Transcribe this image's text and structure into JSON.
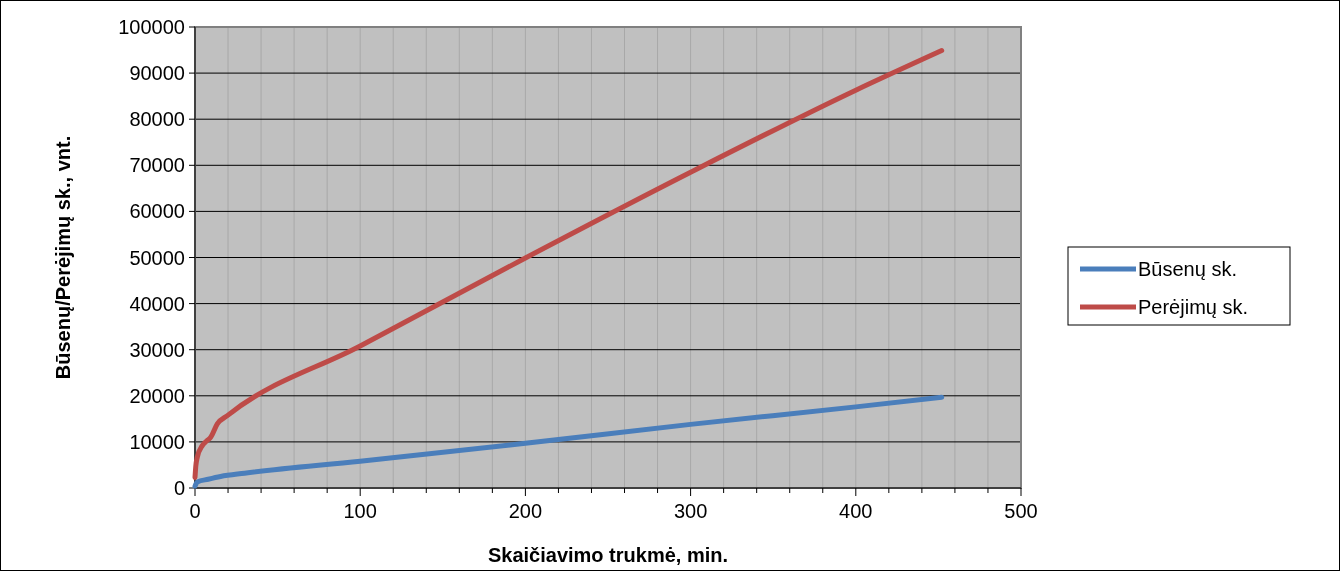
{
  "chart_data": {
    "type": "line",
    "xlabel": "Skaičiavimo trukmė, min.",
    "ylabel": "Būsenų/Perėjimų sk., vnt.",
    "xlim": [
      0,
      500
    ],
    "xticks": [
      0,
      {
        "value": 20,
        "label": null
      },
      {
        "value": 40,
        "label": null
      },
      {
        "value": 60,
        "label": null
      },
      {
        "value": 80,
        "label": null
      },
      100,
      {
        "value": 120,
        "label": null
      },
      {
        "value": 140,
        "label": null
      },
      {
        "value": 160,
        "label": null
      },
      {
        "value": 180,
        "label": null
      },
      200,
      {
        "value": 220,
        "label": null
      },
      {
        "value": 240,
        "label": null
      },
      {
        "value": 260,
        "label": null
      },
      {
        "value": 280,
        "label": null
      },
      300,
      {
        "value": 320,
        "label": null
      },
      {
        "value": 340,
        "label": null
      },
      {
        "value": 360,
        "label": null
      },
      {
        "value": 380,
        "label": null
      },
      400,
      {
        "value": 420,
        "label": null
      },
      {
        "value": 440,
        "label": null
      },
      {
        "value": 460,
        "label": null
      },
      {
        "value": 480,
        "label": null
      },
      500
    ],
    "ylim": [
      0,
      100000
    ],
    "yticks": [
      0,
      10000,
      20000,
      30000,
      40000,
      50000,
      60000,
      70000,
      80000,
      90000,
      100000
    ],
    "grid": true,
    "legend": "right",
    "marker": "none",
    "line_style": "solid",
    "series": [
      {
        "name": "Būsenų sk.",
        "color": "#4a7ebb",
        "x": [
          0,
          1.4,
          8,
          15.5,
          30,
          100,
          200,
          300,
          400,
          452
        ],
        "values": [
          400,
          1300,
          1900,
          2500,
          3200,
          5800,
          9700,
          13800,
          17600,
          19700
        ]
      },
      {
        "name": "Perėjimų sk.",
        "color": "#be4b48",
        "x": [
          0,
          0.5,
          1.4,
          4.4,
          7,
          9.5,
          13.5,
          19.6,
          100,
          200,
          300,
          400,
          452
        ],
        "values": [
          2300,
          4800,
          6700,
          9200,
          10200,
          11000,
          13900,
          15700,
          30800,
          49900,
          68500,
          86300,
          94900
        ]
      }
    ]
  }
}
